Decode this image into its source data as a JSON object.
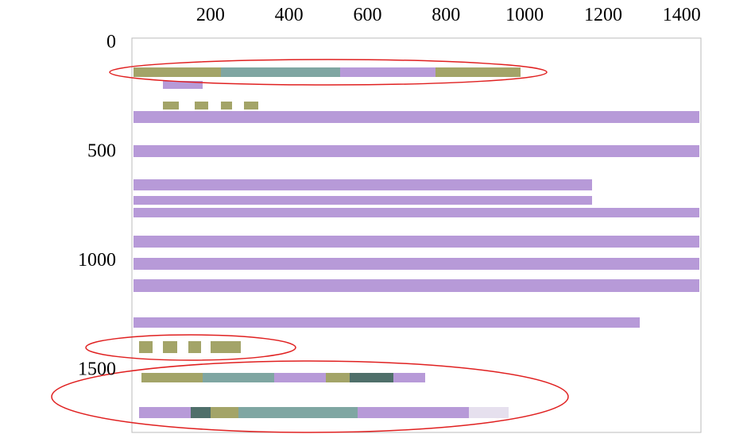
{
  "axes": {
    "xlim": [
      0,
      1445
    ],
    "ylim": [
      0,
      1790
    ],
    "xticks": [
      200,
      400,
      600,
      800,
      1000,
      1200,
      1400
    ],
    "yticks": [
      0,
      500,
      1000,
      1500
    ]
  }
}
